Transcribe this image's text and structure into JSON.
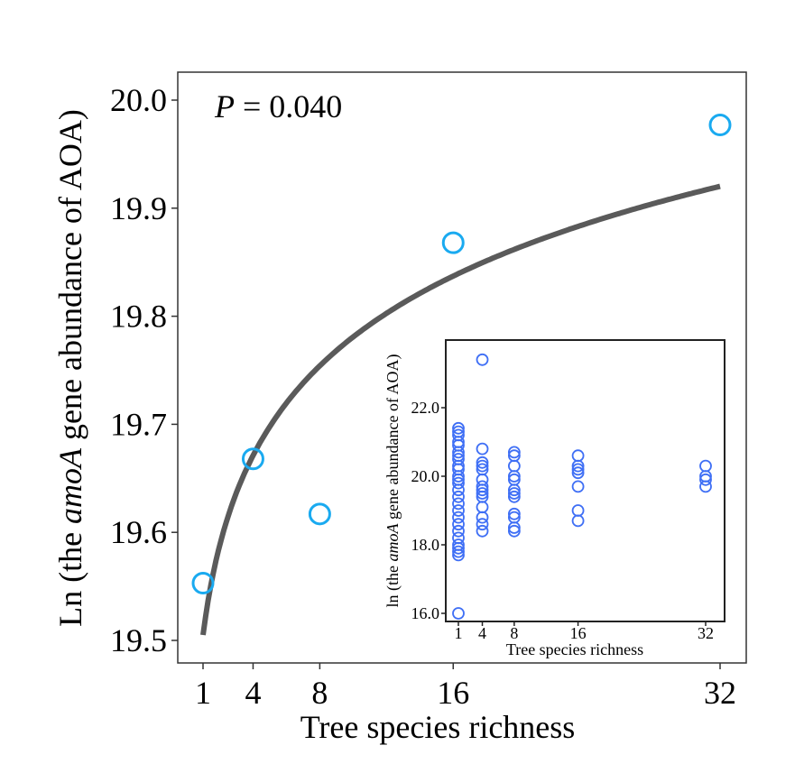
{
  "chart_data": [
    {
      "type": "scatter",
      "title": "",
      "annotation": {
        "italic": "P",
        "rest": " = 0.040"
      },
      "xlabel": "Tree species richness",
      "ylabel": {
        "before": "Ln (the ",
        "italic": "amoA",
        "after": " gene abundance of AOA)"
      },
      "xticks": [
        1,
        4,
        8,
        16,
        32
      ],
      "yticks": [
        "19.5",
        "19.6",
        "19.7",
        "19.8",
        "19.9",
        "20.0"
      ],
      "xlim": [
        -0.5,
        33.5
      ],
      "ylim": [
        19.48,
        20.025
      ],
      "points": {
        "x": [
          1,
          4,
          8,
          16,
          32
        ],
        "y": [
          19.553,
          19.668,
          19.617,
          19.868,
          19.977
        ]
      },
      "fit": {
        "type": "logarithmic",
        "intercept": 19.505,
        "slope_ln": 0.1198,
        "x_range": [
          1,
          32
        ]
      },
      "colors": {
        "points": "#1aaaf0",
        "fit": "#5a5a5a"
      }
    },
    {
      "type": "scatter",
      "title": "",
      "xlabel": "Tree species richness",
      "ylabel": {
        "before": "ln (the ",
        "italic": "amoA",
        "after": " gene abundance of AOA)"
      },
      "xticks": [
        1,
        4,
        8,
        16,
        32
      ],
      "yticks": [
        "16.0",
        "18.0",
        "20.0",
        "22.0"
      ],
      "xlim": [
        -0.6,
        34.0
      ],
      "ylim": [
        15.8,
        24.0
      ],
      "series": [
        {
          "x": 1,
          "y": [
            16.0,
            17.7,
            17.8,
            17.9,
            18.0,
            18.2,
            18.4,
            18.6,
            18.8,
            19.0,
            19.2,
            19.4,
            19.6,
            19.8,
            19.9,
            20.0,
            20.2,
            20.3,
            20.5,
            20.6,
            20.7,
            20.9,
            21.0,
            21.2,
            21.3,
            21.4
          ]
        },
        {
          "x": 4,
          "y": [
            18.4,
            18.6,
            18.8,
            19.1,
            19.4,
            19.5,
            19.6,
            19.7,
            19.9,
            20.2,
            20.3,
            20.4,
            20.8,
            23.4
          ]
        },
        {
          "x": 8,
          "y": [
            18.4,
            18.5,
            18.8,
            18.9,
            19.4,
            19.5,
            19.6,
            19.9,
            20.0,
            20.3,
            20.6,
            20.7
          ]
        },
        {
          "x": 16,
          "y": [
            18.7,
            19.0,
            19.7,
            20.1,
            20.2,
            20.3,
            20.6
          ]
        },
        {
          "x": 32,
          "y": [
            19.7,
            19.9,
            20.0,
            20.3
          ]
        }
      ],
      "colors": {
        "points": "#3f6ff5"
      }
    }
  ]
}
